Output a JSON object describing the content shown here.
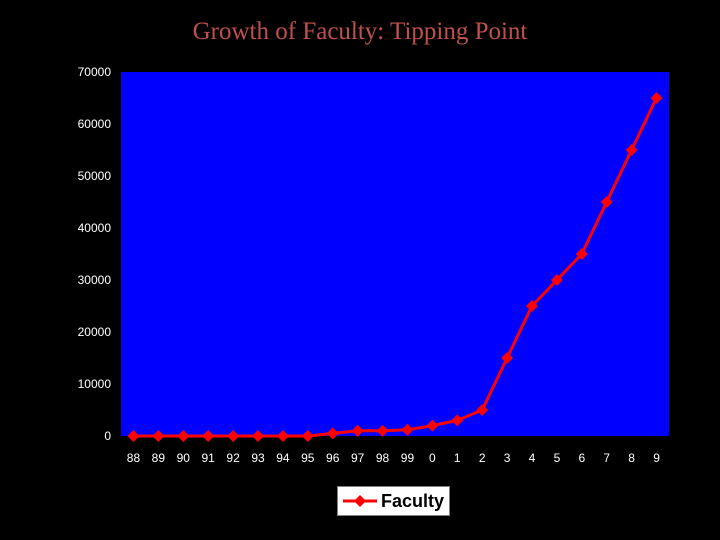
{
  "title": "Growth of Faculty: Tipping Point",
  "colors": {
    "background": "#000000",
    "plot_area": "#0000ff",
    "series": "#ff0000",
    "title": "#c0504d",
    "tick_text": "#ffffff"
  },
  "chart_data": {
    "type": "line",
    "title": "Growth of Faculty: Tipping Point",
    "xlabel": "",
    "ylabel": "",
    "categories": [
      "88",
      "89",
      "90",
      "91",
      "92",
      "93",
      "94",
      "95",
      "96",
      "97",
      "98",
      "99",
      "0",
      "1",
      "2",
      "3",
      "4",
      "5",
      "6",
      "7",
      "8",
      "9"
    ],
    "series": [
      {
        "name": "Faculty",
        "marker": "diamond",
        "values": [
          0,
          0,
          0,
          0,
          0,
          0,
          0,
          0,
          500,
          1000,
          1000,
          1200,
          2000,
          3000,
          5000,
          15000,
          25000,
          30000,
          35000,
          45000,
          55000,
          65000
        ]
      }
    ],
    "ylim": [
      0,
      70000
    ],
    "yticks": [
      0,
      10000,
      20000,
      30000,
      40000,
      50000,
      60000,
      70000
    ],
    "grid": false,
    "legend": "bottom"
  },
  "legend": {
    "label": "Faculty"
  }
}
